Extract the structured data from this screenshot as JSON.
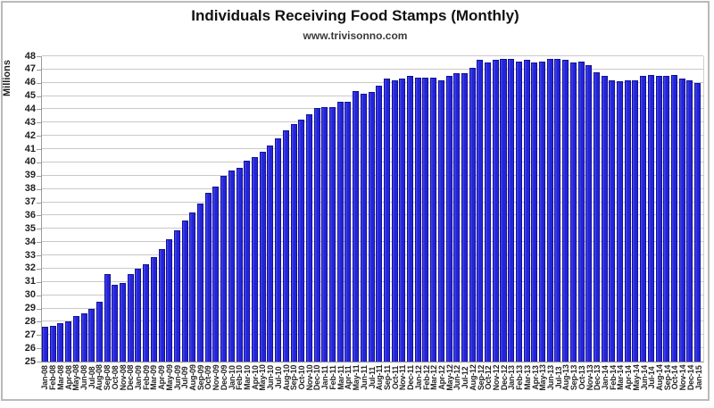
{
  "page": {
    "title": "Individuals Receiving Food Stamps (Monthly)",
    "subtitle": "www.trivisonno.com"
  },
  "chart_data": {
    "type": "bar",
    "title": "Individuals Receiving Food Stamps (Monthly)",
    "subtitle": "www.trivisonno.com",
    "xlabel": "",
    "ylabel": "Millions",
    "ylim": [
      25,
      48
    ],
    "ytick_step": 1,
    "grid": true,
    "legend": false,
    "bar_color": "#2424d9",
    "bar_edge_color": "#12128f",
    "gridline_color": "#c9c9c9",
    "axis_color": "#9b9b9b",
    "categories": [
      "Jan-08",
      "Feb-08",
      "Mar-08",
      "Apr-08",
      "May-08",
      "Jun-08",
      "Jul-08",
      "Aug-08",
      "Sep-08",
      "Oct-08",
      "Nov-08",
      "Dec-08",
      "Jan-09",
      "Feb-09",
      "Mar-09",
      "Apr-09",
      "May-09",
      "Jun-09",
      "Jul-09",
      "Aug-09",
      "Sep-09",
      "Oct-09",
      "Nov-09",
      "Dec-09",
      "Jan-10",
      "Feb-10",
      "Mar-10",
      "Apr-10",
      "May-10",
      "Jun-10",
      "Jul-10",
      "Aug-10",
      "Sep-10",
      "Oct-10",
      "Nov-10",
      "Dec-10",
      "Jan-11",
      "Feb-11",
      "Mar-11",
      "Apr-11",
      "May-11",
      "Jun-11",
      "Jul-11",
      "Aug-11",
      "Sep-11",
      "Oct-11",
      "Nov-11",
      "Dec-11",
      "Jan-12",
      "Feb-12",
      "Mar-12",
      "Apr-12",
      "May-12",
      "Jun-12",
      "Jul-12",
      "Aug-12",
      "Sep-12",
      "Oct-12",
      "Nov-12",
      "Dec-12",
      "Jan-13",
      "Feb-13",
      "Mar-13",
      "Apr-13",
      "May-13",
      "Jun-13",
      "Jul-13",
      "Aug-13",
      "Sep-13",
      "Oct-13",
      "Nov-13",
      "Dec-13",
      "Jan-14",
      "Feb-14",
      "Mar-14",
      "Apr-14",
      "May-14",
      "Jun-14",
      "Jul-14",
      "Aug-14",
      "Sep-14",
      "Oct-14",
      "Nov-14",
      "Dec-14",
      "Jan-15"
    ],
    "values": [
      27.6,
      27.7,
      27.9,
      28.0,
      28.4,
      28.6,
      29.0,
      29.5,
      31.6,
      30.8,
      30.9,
      31.6,
      32.0,
      32.3,
      32.9,
      33.5,
      34.2,
      34.9,
      35.6,
      36.2,
      36.9,
      37.7,
      38.2,
      39.0,
      39.4,
      39.6,
      40.1,
      40.4,
      40.8,
      41.3,
      41.8,
      42.4,
      42.9,
      43.2,
      43.6,
      44.1,
      44.2,
      44.2,
      44.6,
      44.6,
      45.4,
      45.2,
      45.3,
      45.8,
      46.3,
      46.2,
      46.3,
      46.5,
      46.4,
      46.4,
      46.4,
      46.2,
      46.5,
      46.7,
      46.7,
      47.1,
      47.7,
      47.5,
      47.7,
      47.8,
      47.8,
      47.6,
      47.7,
      47.5,
      47.6,
      47.8,
      47.8,
      47.7,
      47.5,
      47.6,
      47.3,
      46.8,
      46.5,
      46.2,
      46.1,
      46.2,
      46.2,
      46.5,
      46.6,
      46.5,
      46.5,
      46.6,
      46.3,
      46.2,
      46.0
    ]
  }
}
